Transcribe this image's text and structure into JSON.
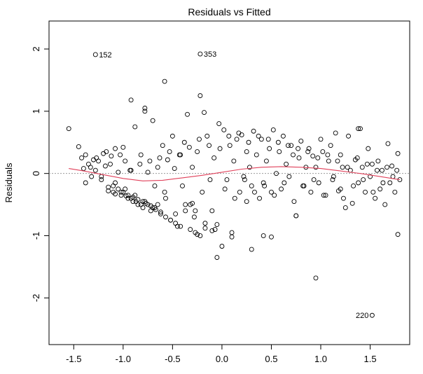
{
  "chart_data": {
    "type": "scatter",
    "title": "Residuals vs Fitted",
    "xlabel": "",
    "ylabel": "Residuals",
    "xlim": [
      -1.75,
      1.9
    ],
    "ylim": [
      -2.75,
      2.45
    ],
    "x_ticks": [
      -1.5,
      -1.0,
      -0.5,
      0.0,
      0.5,
      1.0,
      1.5
    ],
    "x_tick_labels": [
      "-1.5",
      "-1.0",
      "-0.5",
      "0.0",
      "0.5",
      "1.0",
      "1.5"
    ],
    "y_ticks": [
      -2,
      -1,
      0,
      1,
      2
    ],
    "y_tick_labels": [
      "-2",
      "-1",
      "0",
      "1",
      "2"
    ],
    "reference_line": {
      "y": 0,
      "style": "dotted",
      "color": "#9a9a9a"
    },
    "smooth_color": "#e0405a",
    "point_color": "#000000",
    "annotations": [
      {
        "label": "152",
        "x": -1.28,
        "y": 1.91
      },
      {
        "label": "353",
        "x": -0.22,
        "y": 1.92
      },
      {
        "label": "220",
        "x": 1.52,
        "y": -2.28
      }
    ],
    "smooth": {
      "x": [
        -1.55,
        -1.4,
        -1.2,
        -1.0,
        -0.8,
        -0.6,
        -0.4,
        -0.2,
        0.0,
        0.2,
        0.4,
        0.6,
        0.8,
        1.0,
        1.2,
        1.4,
        1.6,
        1.8
      ],
      "y": [
        0.08,
        0.04,
        -0.02,
        -0.08,
        -0.12,
        -0.11,
        -0.07,
        -0.03,
        0.02,
        0.07,
        0.1,
        0.11,
        0.1,
        0.08,
        0.04,
        0.0,
        -0.05,
        -0.1
      ]
    },
    "points": {
      "x": [
        -1.55,
        -1.45,
        -1.42,
        -1.4,
        -1.38,
        -1.35,
        -1.32,
        -1.3,
        -1.28,
        -1.25,
        -1.22,
        -1.2,
        -1.18,
        -1.15,
        -1.12,
        -1.1,
        -1.08,
        -1.05,
        -1.02,
        -1.0,
        -0.98,
        -0.95,
        -0.92,
        -0.9,
        -0.88,
        -0.85,
        -0.82,
        -0.8,
        -0.78,
        -0.75,
        -0.72,
        -0.7,
        -0.68,
        -0.65,
        -0.62,
        -0.6,
        -0.58,
        -0.55,
        -0.52,
        -0.5,
        -0.48,
        -0.45,
        -0.42,
        -0.4,
        -0.38,
        -0.35,
        -0.32,
        -0.3,
        -0.28,
        -0.25,
        -0.22,
        -0.2,
        -0.18,
        -0.15,
        -0.12,
        -0.1,
        -0.08,
        -0.05,
        -0.02,
        0.0,
        0.02,
        0.05,
        0.08,
        0.1,
        0.12,
        0.15,
        0.18,
        0.2,
        0.22,
        0.25,
        0.28,
        0.3,
        0.32,
        0.35,
        0.38,
        0.4,
        0.42,
        0.45,
        0.48,
        0.5,
        0.52,
        0.55,
        0.58,
        0.6,
        0.62,
        0.65,
        0.68,
        0.7,
        0.72,
        0.75,
        0.78,
        0.8,
        0.82,
        0.85,
        0.88,
        0.9,
        0.92,
        0.95,
        0.98,
        1.0,
        1.02,
        1.05,
        1.08,
        1.1,
        1.12,
        1.15,
        1.18,
        1.2,
        1.22,
        1.25,
        1.28,
        1.3,
        1.32,
        1.35,
        1.38,
        1.4,
        1.42,
        1.45,
        1.48,
        1.5,
        1.52,
        1.55,
        1.58,
        1.6,
        1.62,
        1.65,
        1.68,
        1.7,
        1.72,
        1.75,
        1.78,
        1.8,
        -1.38,
        -1.33,
        -1.27,
        -1.22,
        -1.17,
        -1.13,
        -1.08,
        -1.03,
        -0.98,
        -0.93,
        -0.88,
        -0.83,
        -0.78,
        -0.73,
        -0.68,
        -0.63,
        -0.57,
        -0.53,
        -0.47,
        -0.43,
        -0.37,
        -0.33,
        -0.27,
        -0.23,
        -0.17,
        -0.13,
        -0.07,
        -0.03,
        0.03,
        0.07,
        0.13,
        0.17,
        0.23,
        0.27,
        0.33,
        0.37,
        0.43,
        0.47,
        0.53,
        0.57,
        0.63,
        0.67,
        0.73,
        0.77,
        0.83,
        0.87,
        0.93,
        0.97,
        1.03,
        1.07,
        1.13,
        1.17,
        1.23,
        1.27,
        1.33,
        1.37,
        1.43,
        1.47,
        1.53,
        1.57,
        1.63,
        1.67,
        1.73,
        1.77,
        -1.1,
        -1.05,
        -1.0,
        -0.95,
        -0.9,
        -0.85,
        -0.8,
        -0.75,
        -0.7,
        -0.65,
        -1.15,
        -1.08,
        -1.02,
        -0.97,
        -0.92,
        -0.87,
        -0.82,
        -0.77,
        -0.72,
        -0.67,
        -0.62,
        -0.57,
        -0.52,
        -0.47,
        -0.42,
        -0.37,
        -0.32,
        -0.27,
        -0.22,
        -0.17,
        -1.28,
        -0.22,
        1.52,
        0.95,
        0.42,
        -0.58,
        -0.78,
        -0.92,
        -0.25,
        -0.05,
        0.1,
        0.3,
        0.5,
        0.75,
        1.2,
        1.38,
        1.78,
        -0.3,
        -0.1,
        0.25
      ],
      "y": [
        0.72,
        0.43,
        0.25,
        0.08,
        0.3,
        0.15,
        -0.05,
        0.22,
        0.05,
        0.2,
        -0.1,
        0.32,
        0.12,
        -0.22,
        0.28,
        -0.3,
        0.4,
        0.02,
        -0.35,
        0.42,
        0.2,
        -0.4,
        0.05,
        -0.45,
        0.75,
        -0.5,
        0.3,
        -0.55,
        1.05,
        0.02,
        -0.6,
        0.85,
        -0.2,
        0.1,
        -0.65,
        0.45,
        -0.3,
        0.22,
        -0.75,
        0.6,
        0.08,
        -0.85,
        0.3,
        -0.2,
        0.5,
        0.95,
        -0.5,
        0.1,
        -0.7,
        0.35,
        1.25,
        -0.3,
        0.98,
        0.6,
        -0.1,
        -0.6,
        0.25,
        -0.82,
        0.4,
        -1.17,
        0.7,
        -0.1,
        0.45,
        -0.95,
        0.2,
        0.55,
        -0.3,
        0.62,
        -0.05,
        0.35,
        0.1,
        -0.2,
        0.68,
        0.3,
        -0.4,
        0.55,
        -0.15,
        0.2,
        0.4,
        -0.3,
        0.7,
        0.0,
        0.35,
        -0.25,
        0.6,
        0.15,
        -0.05,
        0.45,
        0.3,
        -0.68,
        0.25,
        0.52,
        -0.2,
        0.1,
        0.4,
        -0.3,
        0.28,
        0.1,
        -0.15,
        0.55,
        0.35,
        -0.35,
        0.2,
        0.45,
        -0.1,
        0.65,
        -0.28,
        0.3,
        0.1,
        -0.55,
        0.6,
        0.05,
        -0.48,
        0.22,
        -0.15,
        0.72,
        0.1,
        -0.3,
        0.4,
        -0.05,
        0.15,
        -0.4,
        0.2,
        -0.25,
        0.05,
        -0.5,
        0.48,
        -0.15,
        0.12,
        -0.3,
        0.32,
        -0.1,
        -0.15,
        0.1,
        0.25,
        -0.05,
        0.35,
        0.15,
        -0.15,
        0.3,
        -0.25,
        0.05,
        -0.35,
        0.15,
        -0.45,
        0.2,
        -0.55,
        0.25,
        -0.4,
        0.35,
        -0.65,
        0.3,
        -0.5,
        0.42,
        -0.6,
        0.55,
        -0.8,
        0.45,
        -0.9,
        0.8,
        -0.25,
        0.6,
        -0.4,
        0.65,
        -0.1,
        0.5,
        -0.3,
        0.6,
        -0.2,
        0.55,
        -0.35,
        0.5,
        -0.15,
        0.45,
        -0.45,
        0.4,
        -0.2,
        0.35,
        -0.1,
        0.25,
        -0.35,
        0.3,
        -0.05,
        0.2,
        -0.4,
        0.1,
        -0.2,
        0.25,
        -0.1,
        0.15,
        -0.3,
        0.05,
        -0.15,
        0.1,
        -0.05,
        0.05,
        -0.2,
        -0.25,
        -0.3,
        -0.35,
        -0.38,
        -0.42,
        -0.45,
        -0.5,
        -0.55,
        -0.5,
        -0.28,
        -0.33,
        -0.3,
        -0.36,
        -0.4,
        -0.45,
        -0.5,
        -0.48,
        -0.52,
        -0.58,
        -0.62,
        -0.7,
        -0.75,
        -0.8,
        -0.85,
        -0.6,
        -0.9,
        -0.95,
        -1.0,
        -0.88,
        1.91,
        1.92,
        -2.28,
        -1.68,
        -1.0,
        1.48,
        1.0,
        1.18,
        -0.98,
        -1.35,
        -1.02,
        -1.22,
        -1.02,
        -0.68,
        -0.25,
        0.72,
        -0.98,
        -0.48,
        -0.92,
        -0.45
      ]
    }
  }
}
